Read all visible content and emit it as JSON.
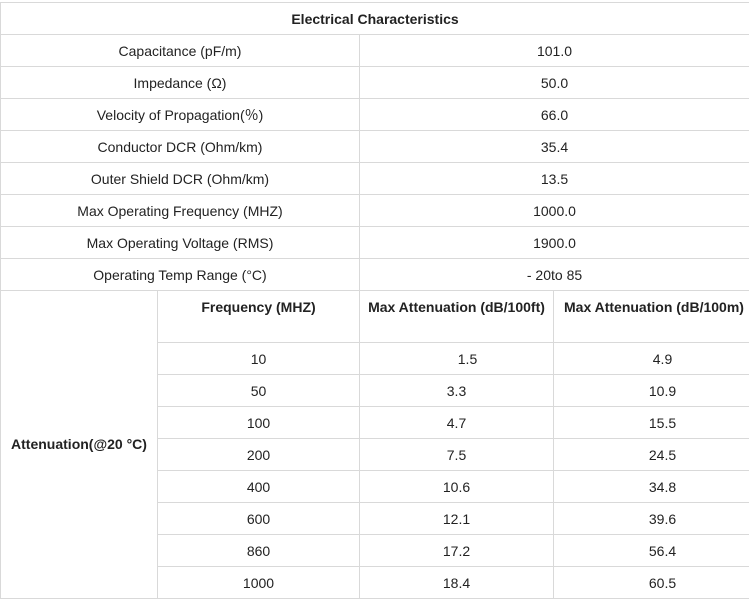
{
  "title": "Electrical Characteristics",
  "properties": [
    {
      "label": "Capacitance (pF/m)",
      "value": "101.0"
    },
    {
      "label": "Impedance (Ω)",
      "value": "50.0"
    },
    {
      "label": "Velocity of Propagation(％)",
      "value": "66.0"
    },
    {
      "label": "Conductor DCR (Ohm/km)",
      "value": "35.4"
    },
    {
      "label": "Outer Shield DCR (Ohm/km)",
      "value": "13.5"
    },
    {
      "label": "Max Operating Frequency (MHZ)",
      "value": "1000.0"
    },
    {
      "label": "Max Operating Voltage (RMS)",
      "value": "1900.0"
    },
    {
      "label": "Operating Temp Range (°C)",
      "value": "- 20to 85"
    }
  ],
  "attenuation": {
    "label": "Attenuation(@20 °C)",
    "headers": {
      "frequency": "Frequency (MHZ)",
      "ft": "Max Attenuation (dB/100ft)",
      "m": "Max Attenuation (dB/100m)"
    },
    "rows": [
      {
        "freq": "10",
        "ft": "1.5",
        "m": "4.9"
      },
      {
        "freq": "50",
        "ft": "3.3",
        "m": "10.9"
      },
      {
        "freq": "100",
        "ft": "4.7",
        "m": "15.5"
      },
      {
        "freq": "200",
        "ft": "7.5",
        "m": "24.5"
      },
      {
        "freq": "400",
        "ft": "10.6",
        "m": "34.8"
      },
      {
        "freq": "600",
        "ft": "12.1",
        "m": "39.6"
      },
      {
        "freq": "860",
        "ft": "17.2",
        "m": "56.4"
      },
      {
        "freq": "1000",
        "ft": "18.4",
        "m": "60.5"
      }
    ]
  }
}
